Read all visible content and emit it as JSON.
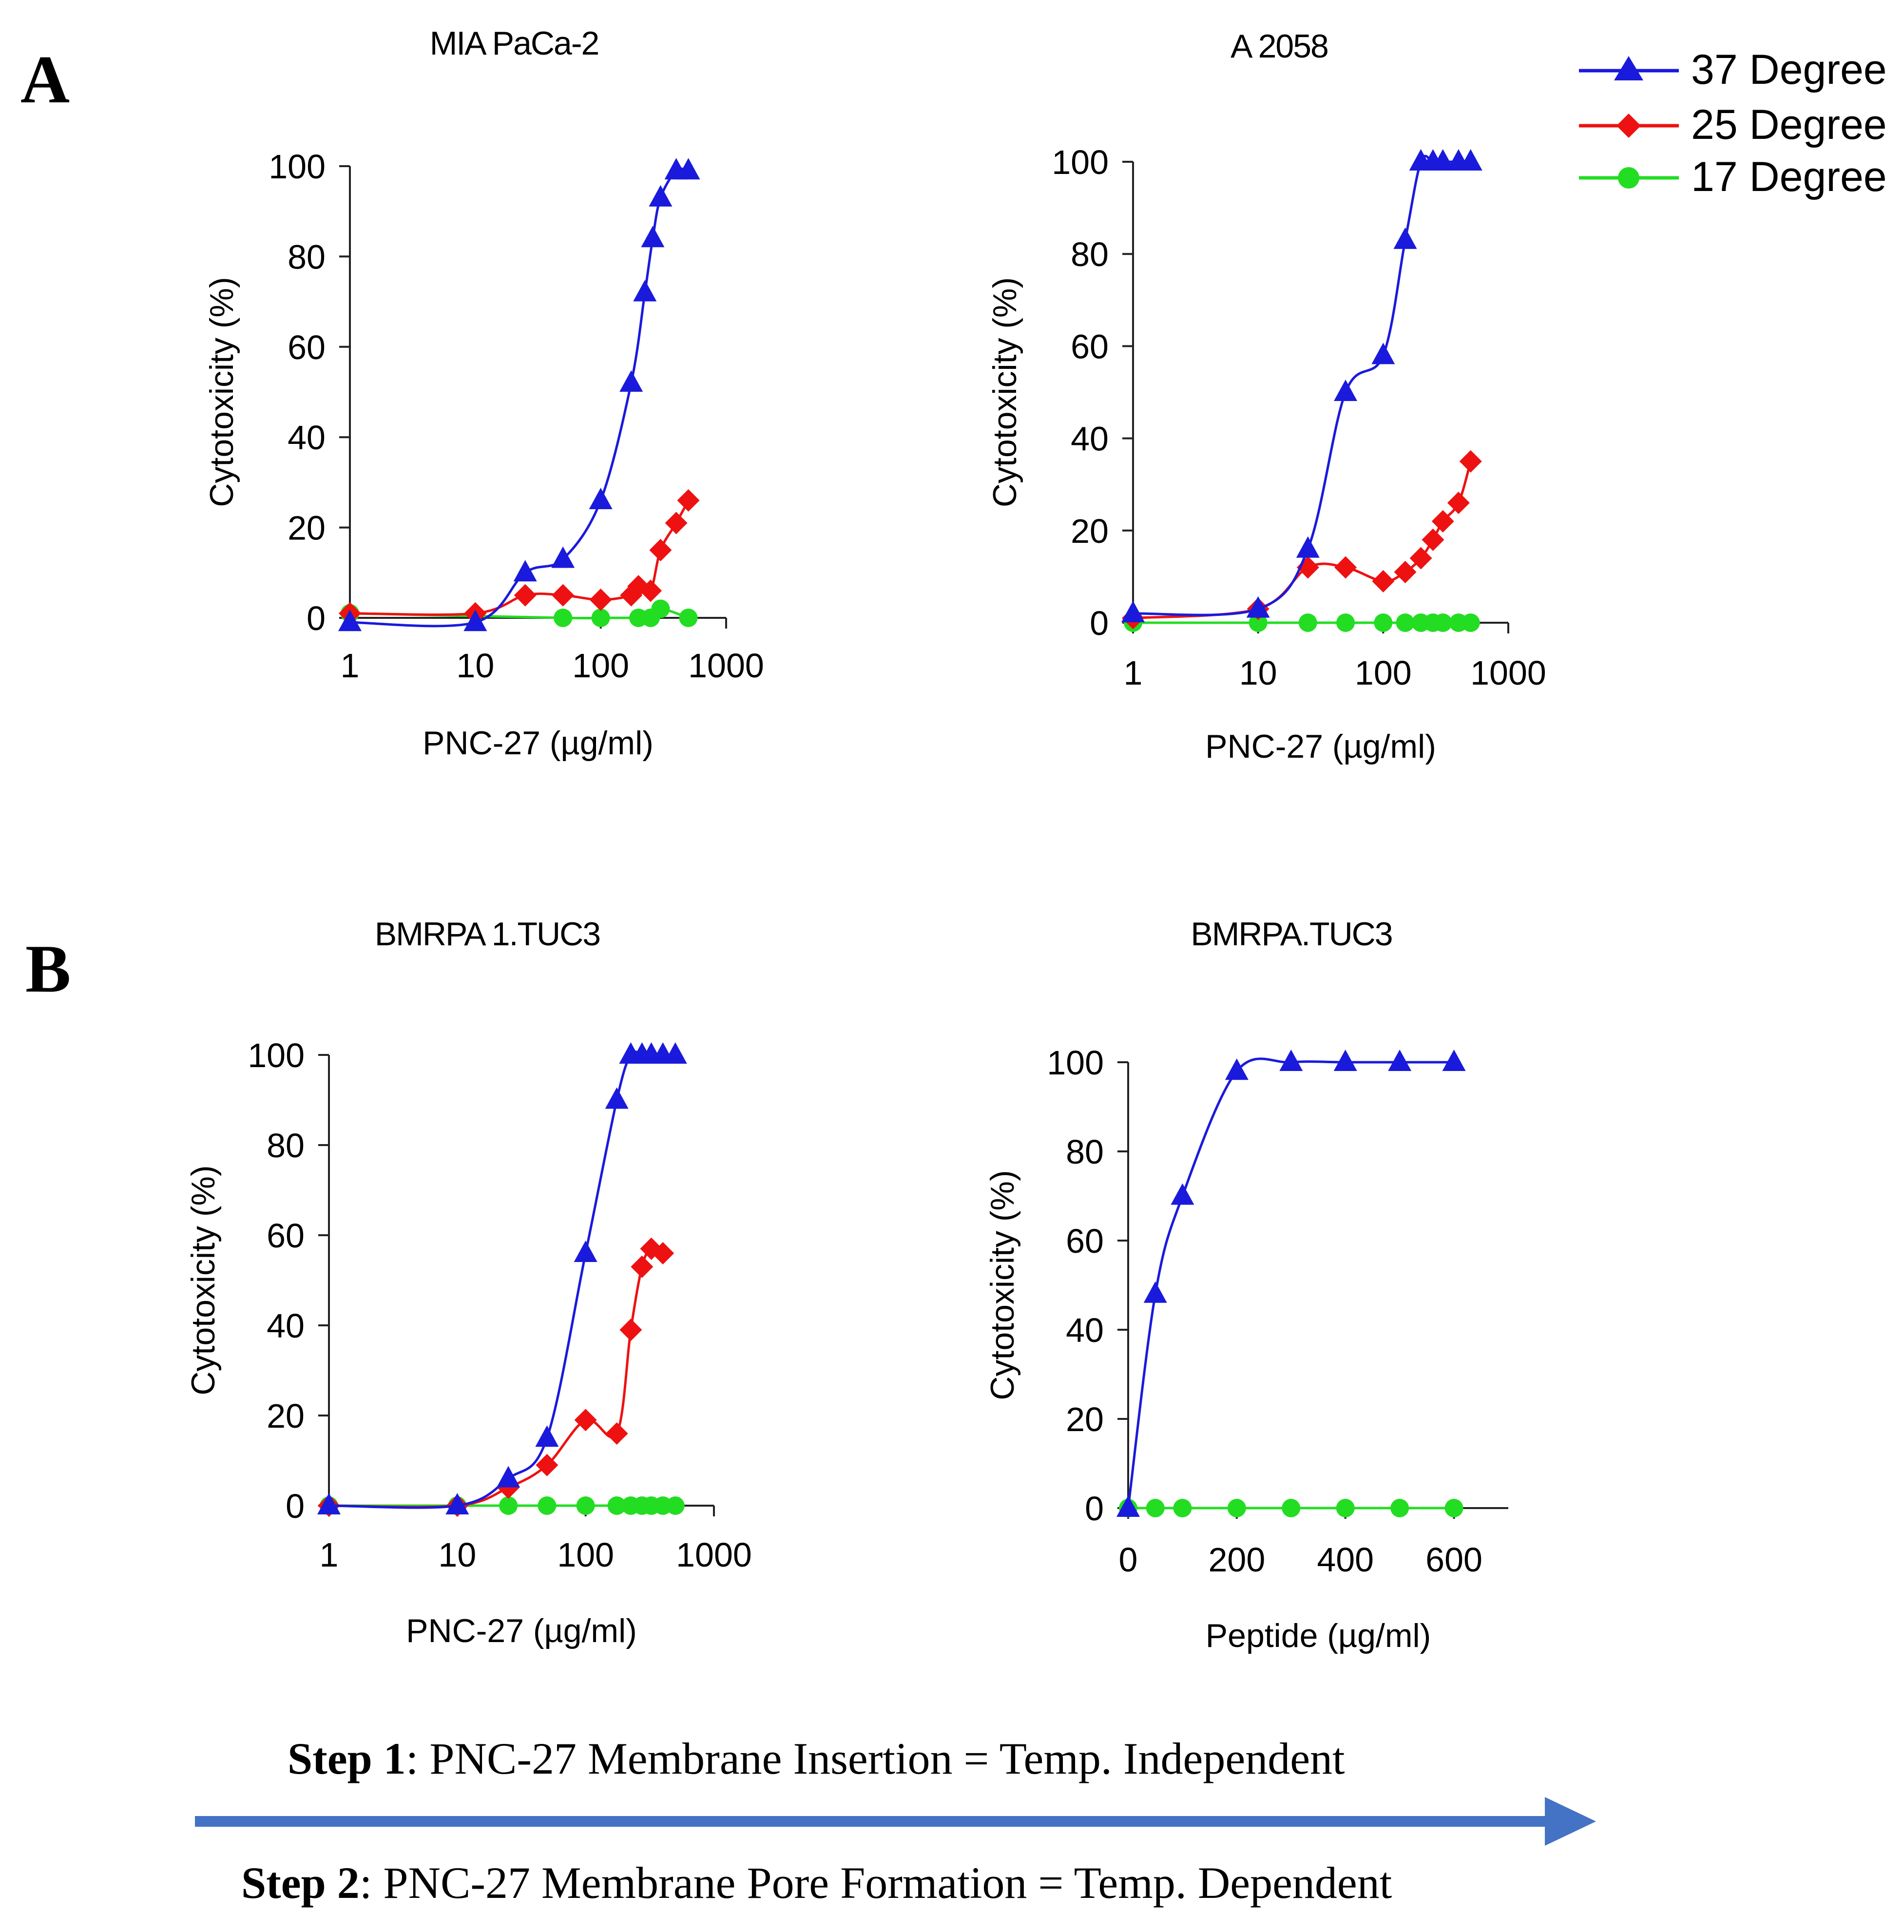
{
  "panel_letters": {
    "a": "A",
    "b": "B"
  },
  "legend": [
    {
      "label": "37 Degree",
      "color": "#1a1adc",
      "marker": "triangle"
    },
    {
      "label": "25 Degree",
      "color": "#ee1111",
      "marker": "diamond"
    },
    {
      "label": "17 Degree",
      "color": "#22dd22",
      "marker": "circle"
    }
  ],
  "steps": {
    "step1_bold": "Step 1",
    "step1_text": ": PNC-27 Membrane Insertion = Temp. Independent",
    "step2_bold": "Step 2",
    "step2_text": ": PNC-27 Membrane Pore Formation = Temp. Dependent",
    "arrow_color": "#4472c4"
  },
  "chart_data": [
    {
      "type": "line",
      "title": "MIA PaCa-2",
      "xlabel": "PNC-27 (µg/ml)",
      "ylabel": "Cytotoxicity (%)",
      "xscale": "log",
      "xlim": [
        1,
        1000
      ],
      "ylim": [
        0,
        100
      ],
      "xticks": [
        "1",
        "10",
        "100",
        "1000"
      ],
      "xtick_values": [
        1,
        10,
        100,
        1000
      ],
      "yticks": [
        "0",
        "20",
        "40",
        "60",
        "80",
        "100"
      ],
      "ytick_values": [
        0,
        20,
        40,
        60,
        80,
        100
      ],
      "series": [
        {
          "name": "37 Degree",
          "color": "#1a1adc",
          "marker": "triangle",
          "x": [
            1,
            10,
            25,
            50,
            100,
            175,
            225,
            260,
            300,
            400,
            500
          ],
          "y": [
            -1,
            -1,
            10,
            13,
            26,
            52,
            72,
            84,
            93,
            99,
            99
          ]
        },
        {
          "name": "25 Degree",
          "color": "#ee1111",
          "marker": "diamond",
          "x": [
            1,
            10,
            25,
            50,
            100,
            175,
            200,
            250,
            300,
            400,
            500
          ],
          "y": [
            1,
            1,
            5,
            5,
            4,
            5,
            7,
            6,
            15,
            21,
            26
          ]
        },
        {
          "name": "17 Degree",
          "color": "#22dd22",
          "marker": "circle",
          "x": [
            1,
            50,
            100,
            200,
            250,
            300,
            500
          ],
          "y": [
            1,
            0,
            0,
            0,
            0,
            2,
            0
          ]
        }
      ]
    },
    {
      "type": "line",
      "title": "A 2058",
      "xlabel": "PNC-27 (µg/ml)",
      "ylabel": "Cytotoxicity (%)",
      "xscale": "log",
      "xlim": [
        1,
        1000
      ],
      "ylim": [
        0,
        100
      ],
      "xticks": [
        "1",
        "10",
        "100",
        "1000"
      ],
      "xtick_values": [
        1,
        10,
        100,
        1000
      ],
      "yticks": [
        "0",
        "20",
        "40",
        "60",
        "80",
        "100"
      ],
      "ytick_values": [
        0,
        20,
        40,
        60,
        80,
        100
      ],
      "series": [
        {
          "name": "37 Degree",
          "color": "#1a1adc",
          "marker": "triangle",
          "x": [
            1,
            10,
            25,
            50,
            100,
            150,
            200,
            250,
            300,
            400,
            500
          ],
          "y": [
            2,
            3,
            16,
            50,
            58,
            83,
            100,
            100,
            100,
            100,
            100
          ]
        },
        {
          "name": "25 Degree",
          "color": "#ee1111",
          "marker": "diamond",
          "x": [
            1,
            10,
            25,
            50,
            100,
            150,
            200,
            250,
            300,
            400,
            500
          ],
          "y": [
            1,
            3,
            12,
            12,
            9,
            11,
            14,
            18,
            22,
            26,
            35
          ]
        },
        {
          "name": "17 Degree",
          "color": "#22dd22",
          "marker": "circle",
          "x": [
            1,
            10,
            25,
            50,
            100,
            150,
            200,
            250,
            300,
            400,
            500
          ],
          "y": [
            0,
            0,
            0,
            0,
            0,
            0,
            0,
            0,
            0,
            0,
            0
          ]
        }
      ]
    },
    {
      "type": "line",
      "title": "BMRPA 1.TUC3",
      "xlabel": "PNC-27 (µg/ml)",
      "ylabel": "Cytotoxicity (%)",
      "xscale": "log",
      "xlim": [
        1,
        1000
      ],
      "ylim": [
        0,
        100
      ],
      "xticks": [
        "1",
        "10",
        "100",
        "1000"
      ],
      "xtick_values": [
        1,
        10,
        100,
        1000
      ],
      "yticks": [
        "0",
        "20",
        "40",
        "60",
        "80",
        "100"
      ],
      "ytick_values": [
        0,
        20,
        40,
        60,
        80,
        100
      ],
      "series": [
        {
          "name": "37 Degree",
          "color": "#1a1adc",
          "marker": "triangle",
          "x": [
            1,
            10,
            25,
            50,
            100,
            175,
            225,
            275,
            325,
            400,
            500
          ],
          "y": [
            0,
            0,
            6,
            15,
            56,
            90,
            100,
            100,
            100,
            100,
            100
          ]
        },
        {
          "name": "25 Degree",
          "color": "#ee1111",
          "marker": "diamond",
          "x": [
            1,
            10,
            25,
            50,
            100,
            175,
            225,
            275,
            325,
            400
          ],
          "y": [
            0,
            0,
            4,
            9,
            19,
            16,
            39,
            53,
            57,
            56
          ]
        },
        {
          "name": "17 Degree",
          "color": "#22dd22",
          "marker": "circle",
          "x": [
            1,
            10,
            25,
            50,
            100,
            175,
            225,
            275,
            325,
            400,
            500
          ],
          "y": [
            0,
            0,
            0,
            0,
            0,
            0,
            0,
            0,
            0,
            0,
            0
          ]
        }
      ]
    },
    {
      "type": "line",
      "title": "BMRPA.TUC3",
      "xlabel": "Peptide (µg/ml)",
      "ylabel": "Cytotoxicity (%)",
      "xscale": "linear",
      "xlim": [
        0,
        700
      ],
      "ylim": [
        0,
        100
      ],
      "xticks": [
        "0",
        "200",
        "400",
        "600"
      ],
      "xtick_values": [
        0,
        200,
        400,
        600
      ],
      "yticks": [
        "0",
        "20",
        "40",
        "60",
        "80",
        "100"
      ],
      "ytick_values": [
        0,
        20,
        40,
        60,
        80,
        100
      ],
      "series": [
        {
          "name": "37 Degree",
          "color": "#1a1adc",
          "marker": "triangle",
          "x": [
            0,
            50,
            100,
            200,
            300,
            400,
            500,
            600
          ],
          "y": [
            0,
            48,
            70,
            98,
            100,
            100,
            100,
            100
          ]
        },
        {
          "name": "17 Degree",
          "color": "#22dd22",
          "marker": "circle",
          "x": [
            0,
            50,
            100,
            200,
            300,
            400,
            500,
            600
          ],
          "y": [
            0,
            0,
            0,
            0,
            0,
            0,
            0,
            0
          ]
        }
      ]
    }
  ]
}
